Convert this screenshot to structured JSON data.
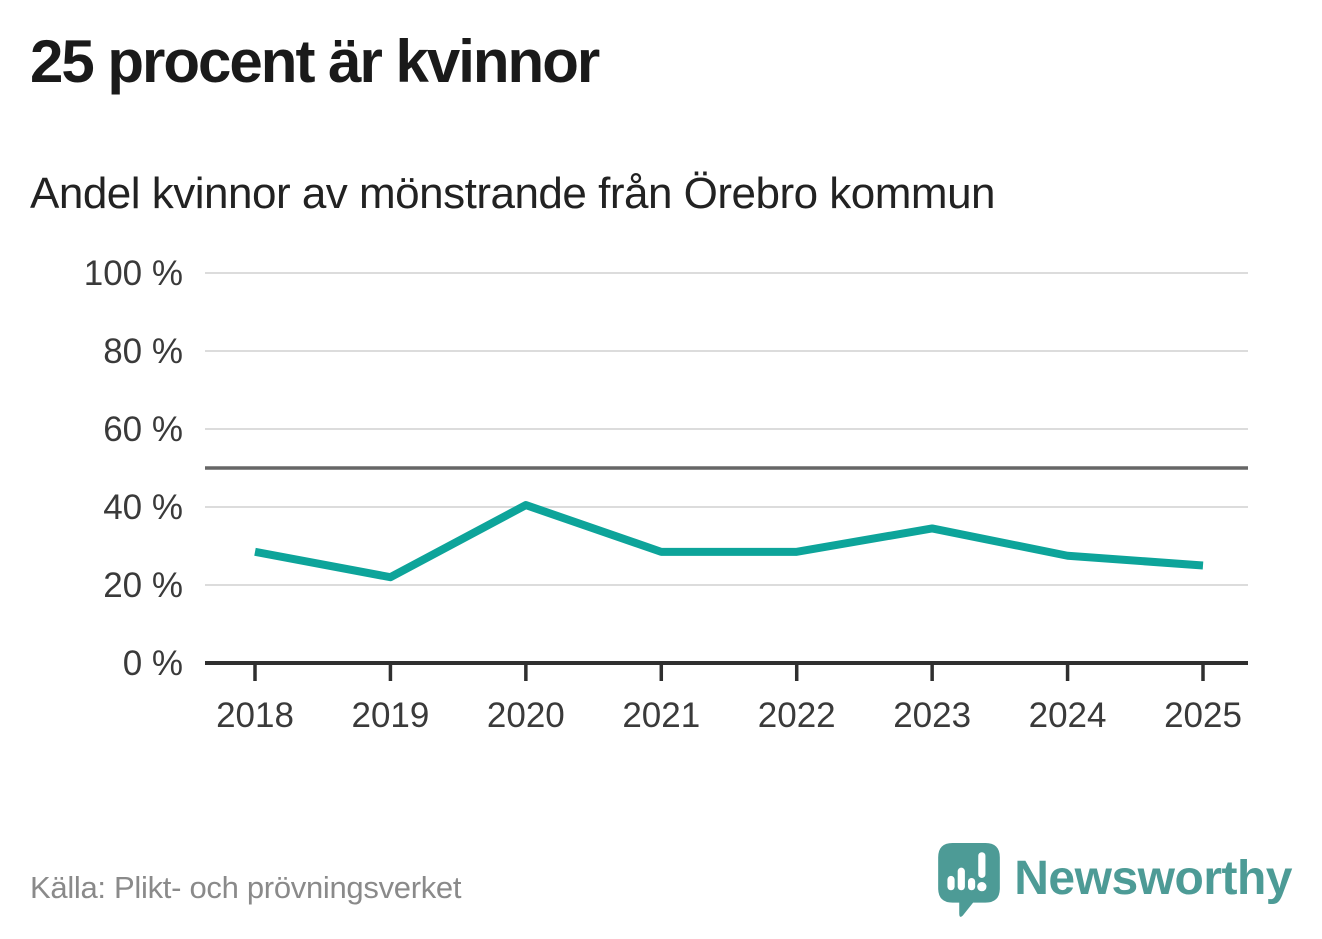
{
  "title": "25 procent är kvinnor",
  "subtitle": "Andel kvinnor av mönstrande från Örebro kommun",
  "footer": {
    "source": "Källa: Plikt- och prövningsverket",
    "brand": "Newsworthy"
  },
  "colors": {
    "line": "#0da49a",
    "grid": "#dcdcdc",
    "reference": "#666666",
    "axis": "#2f2f2f",
    "tick_text": "#3a3a3a",
    "title_text": "#1a1a1a",
    "muted_text": "#8a8a8a",
    "brand": "#4d9b96"
  },
  "chart_data": {
    "type": "line",
    "title": "25 procent är kvinnor",
    "subtitle": "Andel kvinnor av mönstrande från Örebro kommun",
    "x": [
      2018,
      2019,
      2020,
      2021,
      2022,
      2023,
      2024,
      2025
    ],
    "series": [
      {
        "name": "Andel kvinnor av mönstrande",
        "values": [
          28.5,
          22,
          40.5,
          28.5,
          28.5,
          34.5,
          27.5,
          25
        ]
      }
    ],
    "xlabel": "",
    "ylabel": "",
    "ylim": [
      0,
      100
    ],
    "yticks": [
      0,
      20,
      40,
      60,
      80,
      100
    ],
    "ytick_format": "{v} %",
    "reference_line": 50,
    "grid": "horizontal",
    "legend": "none",
    "source": "Källa: Plikt- och prövningsverket"
  }
}
